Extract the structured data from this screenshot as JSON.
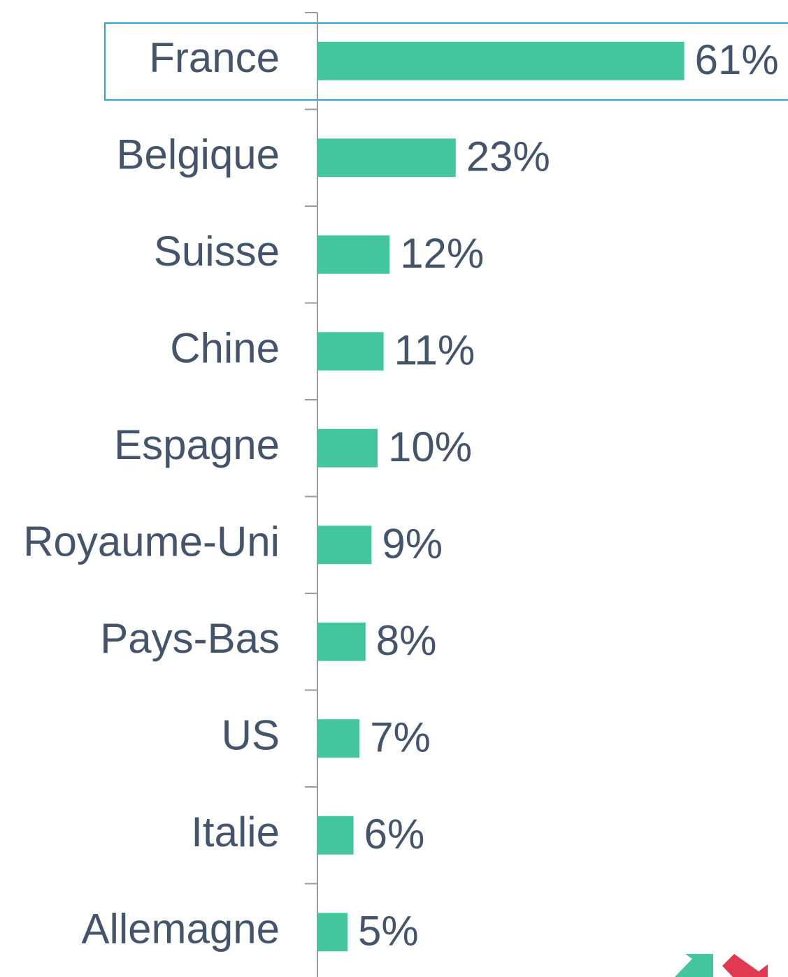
{
  "chart_data": {
    "type": "bar",
    "orientation": "horizontal",
    "categories": [
      "France",
      "Belgique",
      "Suisse",
      "Chine",
      "Espagne",
      "Royaume-Uni",
      "Pays-Bas",
      "US",
      "Italie",
      "Allemagne"
    ],
    "values": [
      61,
      23,
      12,
      11,
      10,
      9,
      8,
      7,
      6,
      5
    ],
    "value_labels": [
      "61%",
      "23%",
      "12%",
      "11%",
      "10%",
      "9%",
      "8%",
      "7%",
      "6%",
      "5%"
    ],
    "color": "#43c69d",
    "xlim": [
      0,
      70
    ]
  }
}
